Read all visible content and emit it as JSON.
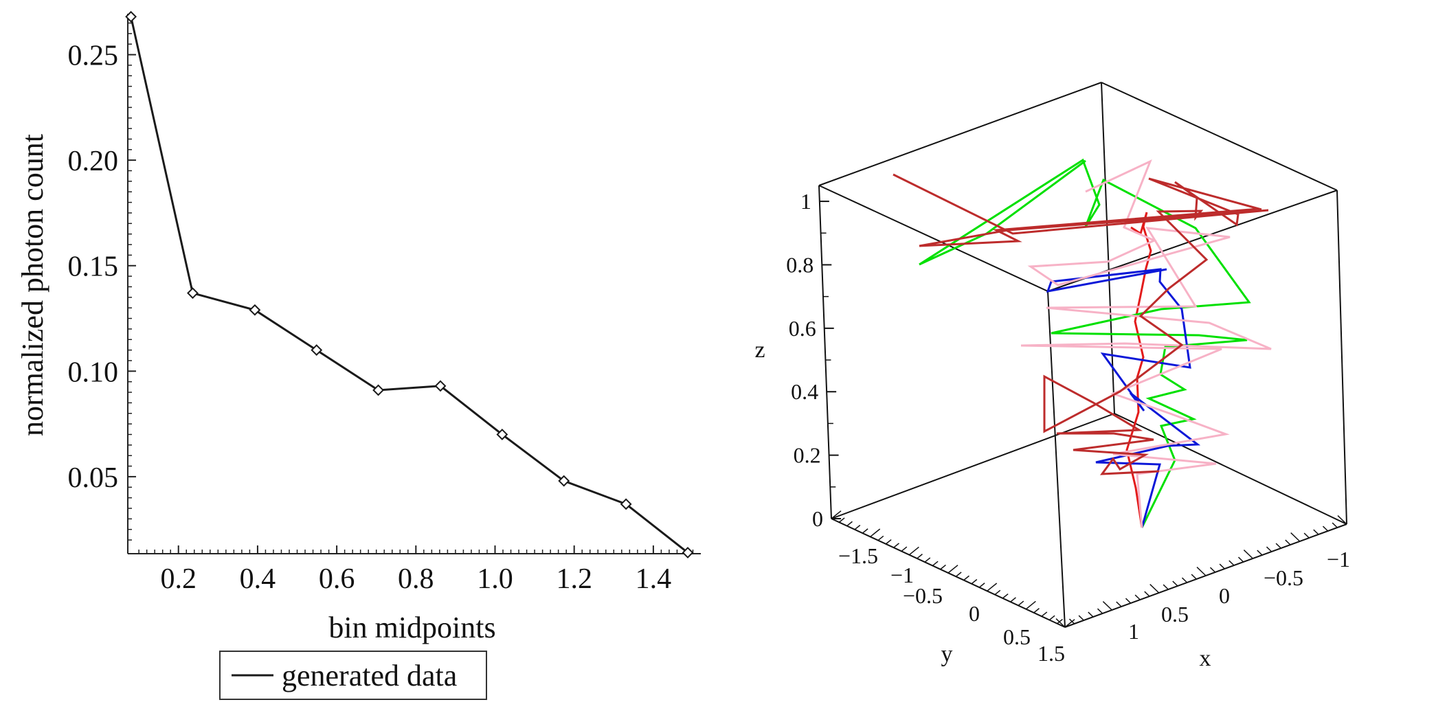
{
  "chart_data": [
    {
      "type": "line",
      "xlabel": "bin midpoints",
      "ylabel": "normalized photon count",
      "xlim": [
        0.072,
        1.52
      ],
      "ylim": [
        0.0135,
        0.2694
      ],
      "x_ticks": [
        0.2,
        0.4,
        0.6,
        0.8,
        1.0,
        1.2,
        1.4
      ],
      "x_tick_labels": [
        "0.2",
        "0.4",
        "0.6",
        "0.8",
        "1.0",
        "1.2",
        "1.4"
      ],
      "y_ticks": [
        0.05,
        0.1,
        0.15,
        0.2,
        0.25
      ],
      "y_tick_labels": [
        "0.05",
        "0.10",
        "0.15",
        "0.20",
        "0.25"
      ],
      "markers": "diamond",
      "legend": {
        "placement": "bottom",
        "entries": [
          "generated data"
        ]
      },
      "series": [
        {
          "name": "generated data",
          "color": "#1a1a1a",
          "x": [
            0.08,
            0.236,
            0.393,
            0.549,
            0.705,
            0.862,
            1.018,
            1.174,
            1.331,
            1.487
          ],
          "y": [
            0.268,
            0.137,
            0.129,
            0.11,
            0.091,
            0.093,
            0.07,
            0.048,
            0.037,
            0.014
          ]
        }
      ]
    },
    {
      "type": "line3d",
      "xlabel": "x",
      "ylabel": "y",
      "zlabel": "z",
      "x_tick_labels": [
        "1",
        "0.5",
        "0",
        "−0.5",
        "−1"
      ],
      "y_tick_labels": [
        "−1.5",
        "−1",
        "−0.5",
        "0",
        "0.5",
        "1.5"
      ],
      "z_tick_labels": [
        "0",
        "0.2",
        "0.4",
        "0.6",
        "0.8",
        "1"
      ],
      "series_colors": [
        "#e31b1b",
        "#00e000",
        "#0c18d8",
        "#f7b2c6",
        "#bd2c2c"
      ]
    }
  ]
}
